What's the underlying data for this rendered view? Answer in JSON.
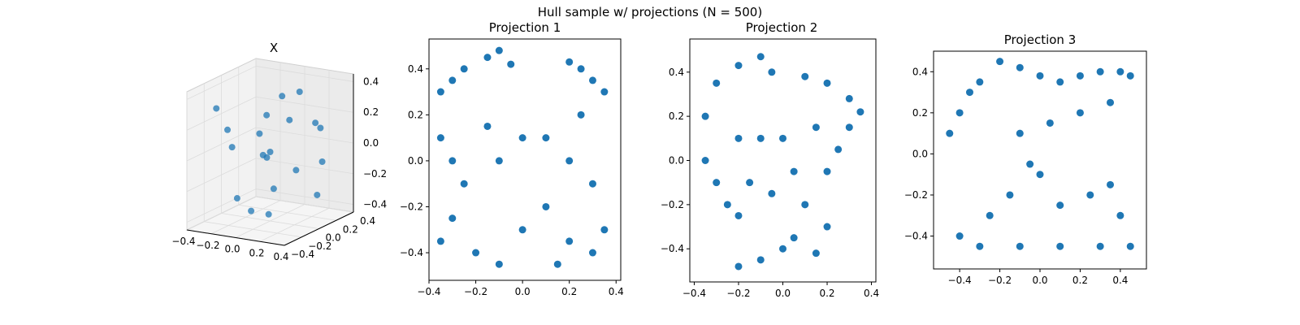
{
  "figure": {
    "suptitle": "Hull sample w/ projections (N = 500)"
  },
  "chart_data": [
    {
      "type": "scatter",
      "subtype": "3d",
      "title": "X",
      "color": "#1f77b4",
      "xlim": [
        -0.4,
        0.4
      ],
      "ylim": [
        -0.4,
        0.4
      ],
      "zlim": [
        -0.45,
        0.45
      ],
      "x_ticks": [
        {
          "v": -0.4,
          "label": "−0.4"
        },
        {
          "v": -0.2,
          "label": "−0.2"
        },
        {
          "v": 0.0,
          "label": "0.0"
        },
        {
          "v": 0.2,
          "label": "0.2"
        },
        {
          "v": 0.4,
          "label": "0.4"
        }
      ],
      "y_ticks": [
        {
          "v": -0.4,
          "label": "−0.4"
        },
        {
          "v": -0.2,
          "label": "−0.2"
        },
        {
          "v": 0.0,
          "label": "0.0"
        },
        {
          "v": 0.2,
          "label": "0.2"
        },
        {
          "v": 0.4,
          "label": "0.4"
        }
      ],
      "z_ticks": [
        {
          "v": -0.4,
          "label": "−0.4"
        },
        {
          "v": -0.2,
          "label": "−0.2"
        },
        {
          "v": 0.0,
          "label": "0.0"
        },
        {
          "v": 0.2,
          "label": "0.2"
        },
        {
          "v": 0.4,
          "label": "0.4"
        }
      ],
      "points": [
        [
          -0.3,
          -0.2,
          0.3
        ],
        [
          -0.1,
          0.1,
          0.2
        ],
        [
          0.2,
          0.3,
          0.1
        ],
        [
          0.1,
          -0.1,
          -0.2
        ],
        [
          -0.2,
          0.2,
          -0.1
        ],
        [
          0.3,
          0.1,
          0.2
        ],
        [
          0.0,
          0.0,
          0.0
        ],
        [
          -0.3,
          0.3,
          0.0
        ],
        [
          0.2,
          -0.3,
          -0.3
        ],
        [
          -0.1,
          -0.3,
          0.1
        ],
        [
          0.3,
          -0.2,
          0.3
        ],
        [
          -0.2,
          -0.1,
          -0.3
        ],
        [
          0.1,
          0.2,
          0.35
        ],
        [
          0.0,
          0.3,
          -0.2
        ],
        [
          -0.35,
          0.0,
          0.1
        ],
        [
          0.25,
          0.25,
          -0.1
        ],
        [
          -0.15,
          0.35,
          0.25
        ],
        [
          0.15,
          -0.25,
          0.05
        ],
        [
          -0.05,
          -0.15,
          -0.35
        ],
        [
          0.35,
          0.05,
          -0.25
        ]
      ]
    },
    {
      "type": "scatter",
      "title": "Projection 1",
      "color": "#1f77b4",
      "xlim": [
        -0.4,
        0.42
      ],
      "ylim": [
        -0.52,
        0.53
      ],
      "x_ticks": [
        {
          "v": -0.4,
          "label": "−0.4"
        },
        {
          "v": -0.2,
          "label": "−0.2"
        },
        {
          "v": 0.0,
          "label": "0.0"
        },
        {
          "v": 0.2,
          "label": "0.2"
        },
        {
          "v": 0.4,
          "label": "0.4"
        }
      ],
      "y_ticks": [
        {
          "v": -0.4,
          "label": "−0.4"
        },
        {
          "v": -0.2,
          "label": "−0.2"
        },
        {
          "v": 0.0,
          "label": "0.0"
        },
        {
          "v": 0.2,
          "label": "0.2"
        },
        {
          "v": 0.4,
          "label": "0.4"
        }
      ],
      "points": [
        [
          -0.35,
          0.3
        ],
        [
          -0.3,
          0.35
        ],
        [
          -0.25,
          0.4
        ],
        [
          -0.15,
          0.45
        ],
        [
          -0.1,
          0.48
        ],
        [
          -0.05,
          0.42
        ],
        [
          0.2,
          0.43
        ],
        [
          0.25,
          0.4
        ],
        [
          0.3,
          0.35
        ],
        [
          0.35,
          0.3
        ],
        [
          -0.35,
          0.1
        ],
        [
          -0.3,
          0.0
        ],
        [
          -0.25,
          -0.1
        ],
        [
          -0.3,
          -0.25
        ],
        [
          -0.35,
          -0.35
        ],
        [
          -0.2,
          -0.4
        ],
        [
          -0.1,
          -0.45
        ],
        [
          0.0,
          -0.3
        ],
        [
          0.1,
          -0.2
        ],
        [
          0.2,
          -0.35
        ],
        [
          0.15,
          -0.45
        ],
        [
          0.3,
          -0.4
        ],
        [
          0.35,
          -0.3
        ],
        [
          0.3,
          -0.1
        ],
        [
          0.2,
          0.0
        ],
        [
          0.1,
          0.1
        ],
        [
          -0.1,
          0.0
        ],
        [
          -0.15,
          0.15
        ],
        [
          0.0,
          0.1
        ],
        [
          0.25,
          0.2
        ]
      ]
    },
    {
      "type": "scatter",
      "title": "Projection 2",
      "color": "#1f77b4",
      "xlim": [
        -0.42,
        0.42
      ],
      "ylim": [
        -0.55,
        0.55
      ],
      "x_ticks": [
        {
          "v": -0.4,
          "label": "−0.4"
        },
        {
          "v": -0.2,
          "label": "−0.2"
        },
        {
          "v": 0.0,
          "label": "0.0"
        },
        {
          "v": 0.2,
          "label": "0.2"
        },
        {
          "v": 0.4,
          "label": "0.4"
        }
      ],
      "y_ticks": [
        {
          "v": -0.4,
          "label": "−0.4"
        },
        {
          "v": -0.2,
          "label": "−0.2"
        },
        {
          "v": 0.0,
          "label": "0.0"
        },
        {
          "v": 0.2,
          "label": "0.2"
        },
        {
          "v": 0.4,
          "label": "0.4"
        }
      ],
      "points": [
        [
          -0.35,
          0.2
        ],
        [
          -0.3,
          0.35
        ],
        [
          -0.2,
          0.43
        ],
        [
          -0.1,
          0.47
        ],
        [
          -0.05,
          0.4
        ],
        [
          0.1,
          0.38
        ],
        [
          0.2,
          0.35
        ],
        [
          0.3,
          0.28
        ],
        [
          0.35,
          0.22
        ],
        [
          0.3,
          0.15
        ],
        [
          -0.35,
          0.0
        ],
        [
          -0.3,
          -0.1
        ],
        [
          -0.25,
          -0.2
        ],
        [
          -0.2,
          -0.25
        ],
        [
          -0.15,
          -0.1
        ],
        [
          -0.1,
          0.1
        ],
        [
          0.0,
          0.1
        ],
        [
          0.05,
          -0.05
        ],
        [
          0.1,
          -0.2
        ],
        [
          0.05,
          -0.35
        ],
        [
          -0.1,
          -0.45
        ],
        [
          -0.2,
          -0.48
        ],
        [
          0.0,
          -0.4
        ],
        [
          0.15,
          -0.42
        ],
        [
          0.2,
          -0.3
        ],
        [
          0.2,
          -0.05
        ],
        [
          0.25,
          0.05
        ],
        [
          0.15,
          0.15
        ],
        [
          -0.05,
          -0.15
        ],
        [
          -0.2,
          0.1
        ]
      ]
    },
    {
      "type": "scatter",
      "title": "Projection 3",
      "color": "#1f77b4",
      "xlim": [
        -0.53,
        0.53
      ],
      "ylim": [
        -0.56,
        0.5
      ],
      "x_ticks": [
        {
          "v": -0.4,
          "label": "−0.4"
        },
        {
          "v": -0.2,
          "label": "−0.2"
        },
        {
          "v": 0.0,
          "label": "0.0"
        },
        {
          "v": 0.2,
          "label": "0.2"
        },
        {
          "v": 0.4,
          "label": "0.4"
        }
      ],
      "y_ticks": [
        {
          "v": -0.4,
          "label": "−0.4"
        },
        {
          "v": -0.2,
          "label": "−0.2"
        },
        {
          "v": 0.0,
          "label": "0.0"
        },
        {
          "v": 0.2,
          "label": "0.2"
        },
        {
          "v": 0.4,
          "label": "0.4"
        }
      ],
      "points": [
        [
          -0.45,
          0.1
        ],
        [
          -0.4,
          0.2
        ],
        [
          -0.35,
          0.3
        ],
        [
          -0.3,
          0.35
        ],
        [
          -0.2,
          0.45
        ],
        [
          -0.1,
          0.42
        ],
        [
          0.0,
          0.38
        ],
        [
          0.1,
          0.35
        ],
        [
          0.2,
          0.38
        ],
        [
          0.3,
          0.4
        ],
        [
          0.4,
          0.4
        ],
        [
          0.45,
          0.38
        ],
        [
          0.35,
          0.25
        ],
        [
          0.2,
          0.2
        ],
        [
          0.05,
          0.15
        ],
        [
          -0.1,
          0.1
        ],
        [
          -0.05,
          -0.05
        ],
        [
          -0.15,
          -0.2
        ],
        [
          -0.25,
          -0.3
        ],
        [
          -0.4,
          -0.4
        ],
        [
          -0.3,
          -0.45
        ],
        [
          -0.1,
          -0.45
        ],
        [
          0.1,
          -0.45
        ],
        [
          0.3,
          -0.45
        ],
        [
          0.45,
          -0.45
        ],
        [
          0.4,
          -0.3
        ],
        [
          0.35,
          -0.15
        ],
        [
          0.25,
          -0.2
        ],
        [
          0.1,
          -0.25
        ],
        [
          0.0,
          -0.1
        ]
      ]
    }
  ]
}
